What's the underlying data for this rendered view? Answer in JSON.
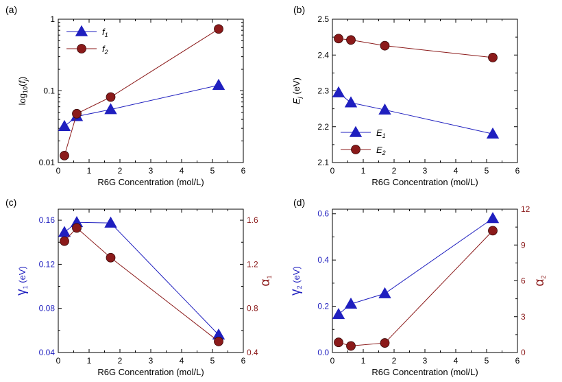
{
  "colors": {
    "blue": "#1f1fbf",
    "darkred": "#8b1a1a",
    "axis": "#000000"
  },
  "chart_data": [
    {
      "id": "a",
      "panel_label": "(a)",
      "type": "line",
      "xlabel": "R6G Concentration (mol/L)",
      "ylabel": {
        "prefix": "log",
        "sub1": "10",
        "mid": "(",
        "italic": "f",
        "sub2": "j",
        "suffix": ")"
      },
      "xlim": [
        0,
        6
      ],
      "ylim": [
        0.01,
        1
      ],
      "yscale": "log",
      "xticks": [
        0,
        1,
        2,
        3,
        4,
        5,
        6
      ],
      "yticks": [
        {
          "value": 0.01,
          "label": "0.01"
        },
        {
          "value": 0.1,
          "label": "0.1"
        },
        {
          "value": 1,
          "label": "1"
        }
      ],
      "legend": "top-left",
      "series": [
        {
          "name": "f",
          "sub": "1",
          "marker": "triangle",
          "color": "#1f1fbf",
          "axis": "left",
          "x": [
            0.2,
            0.6,
            1.7,
            5.2
          ],
          "y": [
            0.032,
            0.044,
            0.055,
            0.12
          ]
        },
        {
          "name": "f",
          "sub": "2",
          "marker": "circle",
          "color": "#8b1a1a",
          "axis": "left",
          "x": [
            0.2,
            0.6,
            1.7,
            5.2
          ],
          "y": [
            0.0125,
            0.048,
            0.082,
            0.73
          ]
        }
      ]
    },
    {
      "id": "b",
      "panel_label": "(b)",
      "type": "line",
      "xlabel": "R6G Concentration (mol/L)",
      "ylabel": {
        "italic": "E",
        "sub": "j",
        "suffix": " (eV)"
      },
      "xlim": [
        0,
        6
      ],
      "ylim": [
        2.1,
        2.5
      ],
      "xticks": [
        0,
        1,
        2,
        3,
        4,
        5,
        6
      ],
      "yticks": [
        {
          "value": 2.1,
          "label": "2.1"
        },
        {
          "value": 2.2,
          "label": "2.2"
        },
        {
          "value": 2.3,
          "label": "2.3"
        },
        {
          "value": 2.4,
          "label": "2.4"
        },
        {
          "value": 2.5,
          "label": "2.5"
        }
      ],
      "legend": "bottom-left",
      "series": [
        {
          "name": "E",
          "sub": "1",
          "marker": "triangle",
          "color": "#1f1fbf",
          "axis": "left",
          "x": [
            0.2,
            0.6,
            1.7,
            5.2
          ],
          "y": [
            2.295,
            2.267,
            2.247,
            2.18
          ]
        },
        {
          "name": "E",
          "sub": "2",
          "marker": "circle",
          "color": "#8b1a1a",
          "axis": "left",
          "x": [
            0.2,
            0.6,
            1.7,
            5.2
          ],
          "y": [
            2.446,
            2.442,
            2.426,
            2.393
          ]
        }
      ]
    },
    {
      "id": "c",
      "panel_label": "(c)",
      "type": "line",
      "xlabel": "R6G Concentration (mol/L)",
      "ylabel": {
        "greek": "γ",
        "sub": "1",
        "suffix": " (eV)",
        "color": "#1f1fbf"
      },
      "ylabel_right": {
        "greek": "α",
        "sub": "1",
        "color": "#8b1a1a"
      },
      "xlim": [
        0,
        6
      ],
      "ylim": [
        0.04,
        0.17
      ],
      "ylim_right": [
        0.4,
        1.7
      ],
      "xticks": [
        0,
        1,
        2,
        3,
        4,
        5,
        6
      ],
      "yticks": [
        {
          "value": 0.04,
          "label": "0.04"
        },
        {
          "value": 0.08,
          "label": "0.08"
        },
        {
          "value": 0.12,
          "label": "0.12"
        },
        {
          "value": 0.16,
          "label": "0.16"
        }
      ],
      "yticks_right": [
        {
          "value": 0.4,
          "label": "0.4"
        },
        {
          "value": 0.8,
          "label": "0.8"
        },
        {
          "value": 1.2,
          "label": "1.2"
        },
        {
          "value": 1.6,
          "label": "1.6"
        }
      ],
      "legend": "none",
      "series": [
        {
          "marker": "triangle",
          "color": "#1f1fbf",
          "axis": "left",
          "x": [
            0.2,
            0.6,
            1.7,
            5.2
          ],
          "y": [
            0.149,
            0.158,
            0.1575,
            0.056
          ]
        },
        {
          "marker": "circle",
          "color": "#8b1a1a",
          "axis": "right",
          "x": [
            0.2,
            0.6,
            1.7,
            5.2
          ],
          "y": [
            1.41,
            1.53,
            1.26,
            0.5
          ]
        }
      ]
    },
    {
      "id": "d",
      "panel_label": "(d)",
      "type": "line",
      "xlabel": "R6G Concentration (mol/L)",
      "ylabel": {
        "greek": "γ",
        "sub": "2",
        "suffix": " (eV)",
        "color": "#1f1fbf"
      },
      "ylabel_right": {
        "greek": "α",
        "sub": "2",
        "color": "#8b1a1a"
      },
      "xlim": [
        0,
        6
      ],
      "ylim": [
        0,
        0.62
      ],
      "ylim_right": [
        0,
        12
      ],
      "xticks": [
        0,
        1,
        2,
        3,
        4,
        5,
        6
      ],
      "yticks": [
        {
          "value": 0,
          "label": "0.0"
        },
        {
          "value": 0.2,
          "label": "0.2"
        },
        {
          "value": 0.4,
          "label": "0.4"
        },
        {
          "value": 0.6,
          "label": "0.6"
        }
      ],
      "yticks_right": [
        {
          "value": 0,
          "label": "0"
        },
        {
          "value": 3,
          "label": "3"
        },
        {
          "value": 6,
          "label": "6"
        },
        {
          "value": 9,
          "label": "9"
        },
        {
          "value": 12,
          "label": "12"
        }
      ],
      "legend": "none",
      "series": [
        {
          "marker": "triangle",
          "color": "#1f1fbf",
          "axis": "left",
          "x": [
            0.2,
            0.6,
            1.7,
            5.2
          ],
          "y": [
            0.165,
            0.21,
            0.255,
            0.58
          ]
        },
        {
          "marker": "circle",
          "color": "#8b1a1a",
          "axis": "right",
          "x": [
            0.2,
            0.6,
            1.7,
            5.2
          ],
          "y": [
            0.85,
            0.55,
            0.8,
            10.2
          ]
        }
      ]
    }
  ]
}
